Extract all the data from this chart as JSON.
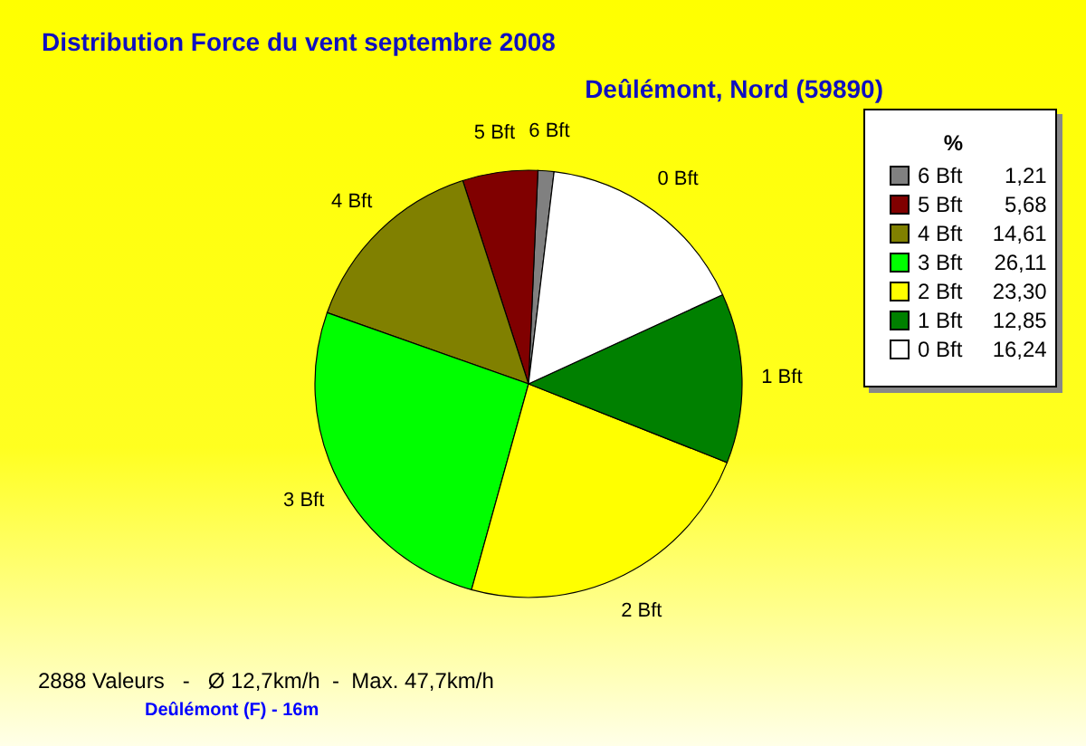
{
  "chart_data": {
    "type": "pie",
    "title": "Distribution Force du vent  septembre 2008",
    "subtitle": "Deûlémont, Nord (59890)",
    "legend_title": "%",
    "categories": [
      "6 Bft",
      "5 Bft",
      "4 Bft",
      "3 Bft",
      "2 Bft",
      "1 Bft",
      "0 Bft"
    ],
    "values": [
      1.21,
      5.68,
      14.61,
      26.11,
      23.3,
      12.85,
      16.24
    ],
    "value_labels": [
      "1,21",
      "5,68",
      "14,61",
      "26,11",
      "23,30",
      "12,85",
      "16,24"
    ],
    "colors": [
      "#808080",
      "#800000",
      "#808000",
      "#00ff00",
      "#ffff00",
      "#008000",
      "#ffffff"
    ],
    "legend": "top right",
    "annotations": [
      "2888 Valeurs   -   Ø 12,7km/h  -  Max. 47,7km/h",
      "Deûlémont (F) - 16m"
    ]
  }
}
